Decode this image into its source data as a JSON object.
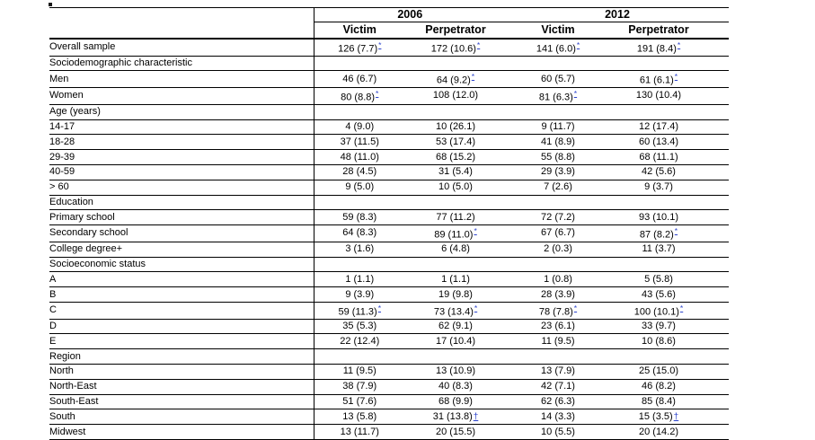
{
  "page": {
    "background": "#ffffff"
  },
  "colors": {
    "border": "#000000",
    "text": "#000000",
    "footnote_link": "#2e45cc"
  },
  "table": {
    "corner_label": "",
    "year_headers": [
      "2006",
      "2012"
    ],
    "sub_headers": [
      "Victim",
      "Perpetrator",
      "Victim",
      "Perpetrator"
    ],
    "rows": [
      {
        "label": "Overall sample",
        "cells": [
          {
            "v": "126 (7.7)",
            "m": "*"
          },
          {
            "v": "172 (10.6)",
            "m": "*"
          },
          {
            "v": "141 (6.0)",
            "m": "*"
          },
          {
            "v": "191 (8.4)",
            "m": "*"
          }
        ]
      },
      {
        "label": "Sociodemographic characteristic",
        "section": true
      },
      {
        "label": "Men",
        "cells": [
          {
            "v": "46 (6.7)",
            "m": ""
          },
          {
            "v": "64 (9.2)",
            "m": "*"
          },
          {
            "v": "60 (5.7)",
            "m": ""
          },
          {
            "v": "61 (6.1)",
            "m": "*"
          }
        ]
      },
      {
        "label": "Women",
        "cells": [
          {
            "v": "80 (8.8)",
            "m": "*"
          },
          {
            "v": "108 (12.0)",
            "m": ""
          },
          {
            "v": "81 (6.3)",
            "m": "*"
          },
          {
            "v": "130 (10.4)",
            "m": ""
          }
        ]
      },
      {
        "label": "Age (years)",
        "section": true
      },
      {
        "label": "14-17",
        "cells": [
          {
            "v": "4 (9.0)",
            "m": ""
          },
          {
            "v": "10 (26.1)",
            "m": ""
          },
          {
            "v": "9 (11.7)",
            "m": ""
          },
          {
            "v": "12 (17.4)",
            "m": ""
          }
        ]
      },
      {
        "label": "18-28",
        "cells": [
          {
            "v": "37 (11.5)",
            "m": ""
          },
          {
            "v": "53 (17.4)",
            "m": ""
          },
          {
            "v": "41 (8.9)",
            "m": ""
          },
          {
            "v": "60 (13.4)",
            "m": ""
          }
        ]
      },
      {
        "label": "29-39",
        "cells": [
          {
            "v": "48 (11.0)",
            "m": ""
          },
          {
            "v": "68 (15.2)",
            "m": ""
          },
          {
            "v": "55 (8.8)",
            "m": ""
          },
          {
            "v": "68 (11.1)",
            "m": ""
          }
        ]
      },
      {
        "label": "40-59",
        "cells": [
          {
            "v": "28 (4.5)",
            "m": ""
          },
          {
            "v": "31 (5.4)",
            "m": ""
          },
          {
            "v": "29 (3.9)",
            "m": ""
          },
          {
            "v": "42 (5.6)",
            "m": ""
          }
        ]
      },
      {
        "label": "> 60",
        "cells": [
          {
            "v": "9 (5.0)",
            "m": ""
          },
          {
            "v": "10 (5.0)",
            "m": ""
          },
          {
            "v": "7 (2.6)",
            "m": ""
          },
          {
            "v": "9 (3.7)",
            "m": ""
          }
        ]
      },
      {
        "label": "Education",
        "section": true
      },
      {
        "label": "Primary school",
        "cells": [
          {
            "v": "59 (8.3)",
            "m": ""
          },
          {
            "v": "77 (11.2)",
            "m": ""
          },
          {
            "v": "72 (7.2)",
            "m": ""
          },
          {
            "v": "93 (10.1)",
            "m": ""
          }
        ]
      },
      {
        "label": "Secondary school",
        "cells": [
          {
            "v": "64 (8.3)",
            "m": ""
          },
          {
            "v": "89 (11.0)",
            "m": "*"
          },
          {
            "v": "67 (6.7)",
            "m": ""
          },
          {
            "v": "87 (8.2)",
            "m": "*"
          }
        ]
      },
      {
        "label": "College degree+",
        "cells": [
          {
            "v": "3 (1.6)",
            "m": ""
          },
          {
            "v": "6 (4.8)",
            "m": ""
          },
          {
            "v": "2 (0.3)",
            "m": ""
          },
          {
            "v": "11 (3.7)",
            "m": ""
          }
        ]
      },
      {
        "label": "Socioeconomic status",
        "section": true
      },
      {
        "label": "A",
        "cells": [
          {
            "v": "1 (1.1)",
            "m": ""
          },
          {
            "v": "1 (1.1)",
            "m": ""
          },
          {
            "v": "1 (0.8)",
            "m": ""
          },
          {
            "v": "5 (5.8)",
            "m": ""
          }
        ]
      },
      {
        "label": "B",
        "cells": [
          {
            "v": "9 (3.9)",
            "m": ""
          },
          {
            "v": "19 (9.8)",
            "m": ""
          },
          {
            "v": "28 (3.9)",
            "m": ""
          },
          {
            "v": "43 (5.6)",
            "m": ""
          }
        ]
      },
      {
        "label": "C",
        "cells": [
          {
            "v": "59 (11.3)",
            "m": "*"
          },
          {
            "v": "73 (13.4)",
            "m": "*"
          },
          {
            "v": "78 (7.8)",
            "m": "*"
          },
          {
            "v": "100 (10.1)",
            "m": "*"
          }
        ]
      },
      {
        "label": "D",
        "cells": [
          {
            "v": "35 (5.3)",
            "m": ""
          },
          {
            "v": "62 (9.1)",
            "m": ""
          },
          {
            "v": "23 (6.1)",
            "m": ""
          },
          {
            "v": "33 (9.7)",
            "m": ""
          }
        ]
      },
      {
        "label": "E",
        "cells": [
          {
            "v": "22 (12.4)",
            "m": ""
          },
          {
            "v": "17 (10.4)",
            "m": ""
          },
          {
            "v": "11 (9.5)",
            "m": ""
          },
          {
            "v": "10 (8.6)",
            "m": ""
          }
        ]
      },
      {
        "label": "Region",
        "section": true
      },
      {
        "label": "North",
        "cells": [
          {
            "v": "11 (9.5)",
            "m": ""
          },
          {
            "v": "13 (10.9)",
            "m": ""
          },
          {
            "v": "13 (7.9)",
            "m": ""
          },
          {
            "v": "25 (15.0)",
            "m": ""
          }
        ]
      },
      {
        "label": "North-East",
        "cells": [
          {
            "v": "38 (7.9)",
            "m": ""
          },
          {
            "v": "40 (8.3)",
            "m": ""
          },
          {
            "v": "42 (7.1)",
            "m": ""
          },
          {
            "v": "46 (8.2)",
            "m": ""
          }
        ]
      },
      {
        "label": "South-East",
        "cells": [
          {
            "v": "51 (7.6)",
            "m": ""
          },
          {
            "v": "68 (9.9)",
            "m": ""
          },
          {
            "v": "62 (6.3)",
            "m": ""
          },
          {
            "v": "85 (8.4)",
            "m": ""
          }
        ]
      },
      {
        "label": "South",
        "cells": [
          {
            "v": "13 (5.8)",
            "m": ""
          },
          {
            "v": "31 (13.8)",
            "m": "†"
          },
          {
            "v": "14 (3.3)",
            "m": ""
          },
          {
            "v": "15 (3.5)",
            "m": "†"
          }
        ]
      },
      {
        "label": "Midwest",
        "cells": [
          {
            "v": "13 (11.7)",
            "m": ""
          },
          {
            "v": "20 (15.5)",
            "m": ""
          },
          {
            "v": "10 (5.5)",
            "m": ""
          },
          {
            "v": "20 (14.2)",
            "m": ""
          }
        ]
      }
    ]
  }
}
